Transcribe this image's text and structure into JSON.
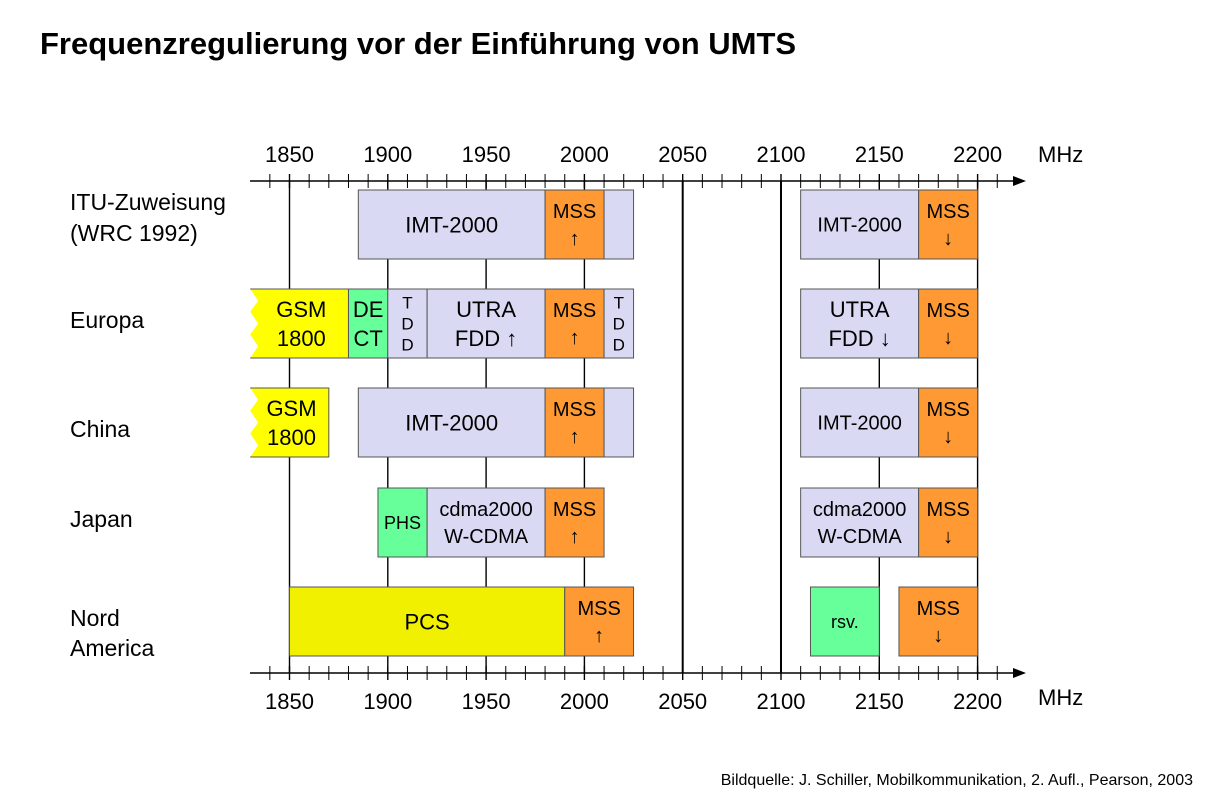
{
  "title": "Frequenzregulierung vor der Einführung von UMTS",
  "source": "Bildquelle: J. Schiller, Mobilkommunikation, 2. Aufl., Pearson, 2003",
  "axis": {
    "unit": "MHz",
    "ticks": [
      "1850",
      "1900",
      "1950",
      "2000",
      "2050",
      "2100",
      "2150",
      "2200"
    ]
  },
  "colors": {
    "imt": "#d9d9f3",
    "mss": "#ff9933",
    "gsm": "#ffff00",
    "dect": "#66ff99",
    "pcs": "#f0f000",
    "rsv": "#66ff99",
    "line": "#000000"
  },
  "rows": [
    {
      "label": [
        "ITU-Zuweisung",
        "(WRC 1992)"
      ],
      "blocks": [
        {
          "name": "imt-2000-block",
          "from": 1885,
          "to": 1980,
          "color": "imt",
          "text": [
            "IMT-2000"
          ]
        },
        {
          "name": "mss-up-block",
          "from": 1980,
          "to": 2010,
          "color": "mss",
          "text": [
            "MSS",
            "↑"
          ]
        },
        {
          "name": "imt-2000-ext-block",
          "from": 2010,
          "to": 2025,
          "color": "imt",
          "text": []
        },
        {
          "name": "imt-2000-block",
          "from": 2110,
          "to": 2170,
          "color": "imt",
          "text": [
            "IMT-2000"
          ]
        },
        {
          "name": "mss-down-block",
          "from": 2170,
          "to": 2200,
          "color": "mss",
          "text": [
            "MSS",
            "↓"
          ]
        }
      ]
    },
    {
      "label": [
        "Europa"
      ],
      "blocks": [
        {
          "name": "gsm-1800-block",
          "from": 1830,
          "to": 1880,
          "color": "gsm",
          "text": [
            "GSM",
            "1800"
          ],
          "notch": true
        },
        {
          "name": "dect-block",
          "from": 1880,
          "to": 1900,
          "color": "dect",
          "text": [
            "DE",
            "CT"
          ]
        },
        {
          "name": "tdd-block",
          "from": 1900,
          "to": 1920,
          "color": "imt",
          "text": [
            "T",
            "D",
            "D"
          ],
          "small": true
        },
        {
          "name": "utra-fdd-up-block",
          "from": 1920,
          "to": 1980,
          "color": "imt",
          "text": [
            "UTRA",
            "FDD ↑"
          ]
        },
        {
          "name": "mss-up-block",
          "from": 1980,
          "to": 2010,
          "color": "mss",
          "text": [
            "MSS",
            "↑"
          ]
        },
        {
          "name": "tdd-block",
          "from": 2010,
          "to": 2025,
          "color": "imt",
          "text": [
            "T",
            "D",
            "D"
          ],
          "small": true
        },
        {
          "name": "utra-fdd-down-block",
          "from": 2110,
          "to": 2170,
          "color": "imt",
          "text": [
            "UTRA",
            "FDD ↓"
          ]
        },
        {
          "name": "mss-down-block",
          "from": 2170,
          "to": 2200,
          "color": "mss",
          "text": [
            "MSS",
            "↓"
          ]
        }
      ]
    },
    {
      "label": [
        "China"
      ],
      "blocks": [
        {
          "name": "gsm-1800-block",
          "from": 1830,
          "to": 1870,
          "color": "gsm",
          "text": [
            "GSM",
            "1800"
          ],
          "notch": true
        },
        {
          "name": "imt-2000-block",
          "from": 1885,
          "to": 1980,
          "color": "imt",
          "text": [
            "IMT-2000"
          ]
        },
        {
          "name": "mss-up-block",
          "from": 1980,
          "to": 2010,
          "color": "mss",
          "text": [
            "MSS",
            "↑"
          ]
        },
        {
          "name": "imt-2000-ext-block",
          "from": 2010,
          "to": 2025,
          "color": "imt",
          "text": []
        },
        {
          "name": "imt-2000-block",
          "from": 2110,
          "to": 2170,
          "color": "imt",
          "text": [
            "IMT-2000"
          ]
        },
        {
          "name": "mss-down-block",
          "from": 2170,
          "to": 2200,
          "color": "mss",
          "text": [
            "MSS",
            "↓"
          ]
        }
      ]
    },
    {
      "label": [
        "Japan"
      ],
      "blocks": [
        {
          "name": "phs-block",
          "from": 1895,
          "to": 1920,
          "color": "dect",
          "text": [
            "PHS"
          ]
        },
        {
          "name": "cdma2000-wcdma-up-block",
          "from": 1920,
          "to": 1980,
          "color": "imt",
          "text": [
            "cdma2000",
            "W-CDMA"
          ]
        },
        {
          "name": "mss-up-block",
          "from": 1980,
          "to": 2010,
          "color": "mss",
          "text": [
            "MSS",
            "↑"
          ]
        },
        {
          "name": "cdma2000-wcdma-down-block",
          "from": 2110,
          "to": 2170,
          "color": "imt",
          "text": [
            "cdma2000",
            "W-CDMA"
          ]
        },
        {
          "name": "mss-down-block",
          "from": 2170,
          "to": 2200,
          "color": "mss",
          "text": [
            "MSS",
            "↓"
          ]
        }
      ]
    },
    {
      "label": [
        "Nord",
        "America"
      ],
      "blocks": [
        {
          "name": "pcs-block",
          "from": 1850,
          "to": 1990,
          "color": "pcs",
          "text": [
            "PCS"
          ]
        },
        {
          "name": "mss-up-block",
          "from": 1990,
          "to": 2025,
          "color": "mss",
          "text": [
            "MSS",
            "↑"
          ]
        },
        {
          "name": "rsv-block",
          "from": 2115,
          "to": 2150,
          "color": "rsv",
          "text": [
            "rsv."
          ]
        },
        {
          "name": "mss-down-block",
          "from": 2160,
          "to": 2200,
          "color": "mss",
          "text": [
            "MSS",
            "↓"
          ]
        }
      ]
    }
  ]
}
